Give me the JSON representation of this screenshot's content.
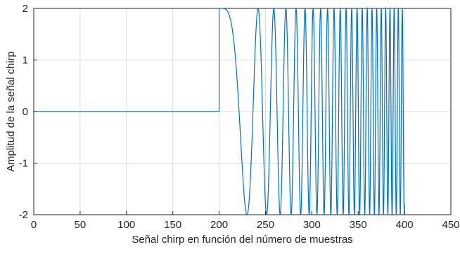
{
  "chart_data": {
    "type": "line",
    "title": "",
    "xlabel": "Señal chirp en función del número de muestras",
    "ylabel": "Amplitud de la señal chirp",
    "xlim": [
      0,
      450
    ],
    "ylim": [
      -2,
      2
    ],
    "xticks": [
      "0",
      "50",
      "100",
      "150",
      "200",
      "250",
      "300",
      "350",
      "400",
      "450"
    ],
    "yticks": [
      "2",
      "1",
      "0",
      "-1",
      "-2"
    ],
    "grid": true,
    "series": [
      {
        "color": "#0072BD",
        "description_points": {
          "zero_segment": {
            "x_start": 0,
            "x_end": 200,
            "y": 0
          },
          "chirp_segment": {
            "x_start": 200,
            "x_end": 400,
            "amplitude": 2,
            "first_min_x": 230,
            "second_max_x": 242
          }
        }
      }
    ]
  }
}
